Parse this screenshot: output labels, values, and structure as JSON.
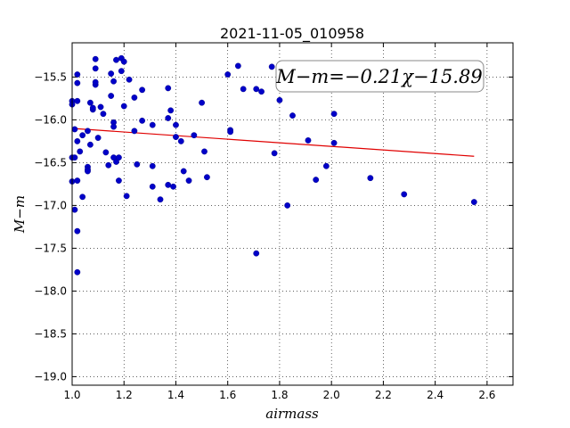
{
  "chart_data": {
    "type": "scatter",
    "title": "2021-11-05_010958",
    "xlabel": "airmass",
    "ylabel": "M−m",
    "xlim": [
      1.0,
      2.7
    ],
    "ylim": [
      -15.1,
      -19.1
    ],
    "x_ticks": [
      "1.0",
      "1.2",
      "1.4",
      "1.6",
      "1.8",
      "2.0",
      "2.2",
      "2.4",
      "2.6"
    ],
    "y_ticks": [
      "−15.5",
      "−16.0",
      "−16.5",
      "−17.0",
      "−17.5",
      "−18.0",
      "−18.5",
      "−19.0"
    ],
    "grid": true,
    "annotation": "M−m=−0.21χ−15.89",
    "colors": {
      "points": "#0000c8",
      "fit": "#e00000"
    },
    "fit": {
      "slope": -0.21,
      "intercept": -15.89,
      "x_range": [
        1.0,
        2.55
      ]
    },
    "series": [
      {
        "points": [
          [
            1.0,
            -15.78
          ],
          [
            1.0,
            -15.82
          ],
          [
            1.0,
            -16.44
          ],
          [
            1.0,
            -16.72
          ],
          [
            1.01,
            -17.05
          ],
          [
            1.01,
            -16.44
          ],
          [
            1.01,
            -16.11
          ],
          [
            1.02,
            -15.47
          ],
          [
            1.02,
            -15.57
          ],
          [
            1.02,
            -15.78
          ],
          [
            1.02,
            -16.25
          ],
          [
            1.02,
            -16.71
          ],
          [
            1.02,
            -17.3
          ],
          [
            1.02,
            -17.78
          ],
          [
            1.03,
            -16.37
          ],
          [
            1.04,
            -16.18
          ],
          [
            1.04,
            -16.9
          ],
          [
            1.06,
            -16.13
          ],
          [
            1.06,
            -16.55
          ],
          [
            1.06,
            -16.58
          ],
          [
            1.06,
            -16.6
          ],
          [
            1.07,
            -15.8
          ],
          [
            1.07,
            -16.29
          ],
          [
            1.08,
            -15.88
          ],
          [
            1.08,
            -15.86
          ],
          [
            1.09,
            -15.59
          ],
          [
            1.09,
            -15.56
          ],
          [
            1.09,
            -15.4
          ],
          [
            1.09,
            -15.29
          ],
          [
            1.1,
            -16.21
          ],
          [
            1.11,
            -15.85
          ],
          [
            1.12,
            -15.93
          ],
          [
            1.13,
            -16.38
          ],
          [
            1.14,
            -16.53
          ],
          [
            1.15,
            -15.46
          ],
          [
            1.15,
            -15.72
          ],
          [
            1.16,
            -15.55
          ],
          [
            1.16,
            -16.03
          ],
          [
            1.16,
            -16.08
          ],
          [
            1.16,
            -16.44
          ],
          [
            1.17,
            -15.3
          ],
          [
            1.17,
            -16.49
          ],
          [
            1.18,
            -16.44
          ],
          [
            1.18,
            -16.71
          ],
          [
            1.19,
            -15.28
          ],
          [
            1.19,
            -15.43
          ],
          [
            1.2,
            -15.32
          ],
          [
            1.2,
            -15.84
          ],
          [
            1.21,
            -16.89
          ],
          [
            1.22,
            -15.53
          ],
          [
            1.24,
            -15.74
          ],
          [
            1.24,
            -16.13
          ],
          [
            1.25,
            -16.52
          ],
          [
            1.27,
            -15.65
          ],
          [
            1.27,
            -16.01
          ],
          [
            1.31,
            -16.06
          ],
          [
            1.31,
            -16.54
          ],
          [
            1.31,
            -16.78
          ],
          [
            1.34,
            -16.93
          ],
          [
            1.37,
            -15.63
          ],
          [
            1.37,
            -15.98
          ],
          [
            1.37,
            -16.76
          ],
          [
            1.38,
            -15.89
          ],
          [
            1.39,
            -16.78
          ],
          [
            1.4,
            -16.06
          ],
          [
            1.4,
            -16.2
          ],
          [
            1.42,
            -16.25
          ],
          [
            1.43,
            -16.6
          ],
          [
            1.45,
            -16.71
          ],
          [
            1.47,
            -16.18
          ],
          [
            1.5,
            -15.8
          ],
          [
            1.51,
            -16.37
          ],
          [
            1.52,
            -16.67
          ],
          [
            1.6,
            -15.47
          ],
          [
            1.61,
            -16.12
          ],
          [
            1.61,
            -16.14
          ],
          [
            1.64,
            -15.37
          ],
          [
            1.66,
            -15.64
          ],
          [
            1.71,
            -15.64
          ],
          [
            1.71,
            -17.56
          ],
          [
            1.73,
            -15.67
          ],
          [
            1.77,
            -15.38
          ],
          [
            1.78,
            -16.39
          ],
          [
            1.8,
            -15.77
          ],
          [
            1.83,
            -17.0
          ],
          [
            1.85,
            -15.95
          ],
          [
            1.91,
            -16.24
          ],
          [
            1.94,
            -16.7
          ],
          [
            1.98,
            -16.54
          ],
          [
            2.01,
            -15.93
          ],
          [
            2.01,
            -16.27
          ],
          [
            2.15,
            -16.68
          ],
          [
            2.28,
            -16.87
          ],
          [
            2.55,
            -16.96
          ]
        ]
      }
    ]
  }
}
